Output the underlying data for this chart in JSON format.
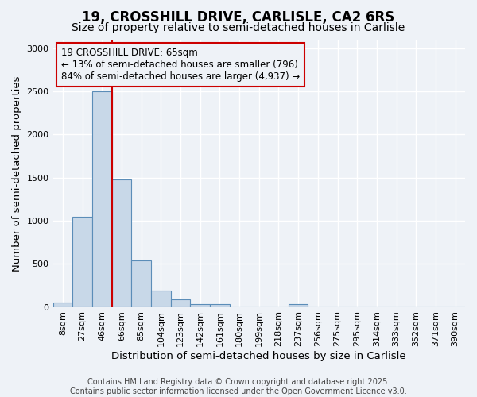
{
  "title": "19, CROSSHILL DRIVE, CARLISLE, CA2 6RS",
  "subtitle": "Size of property relative to semi-detached houses in Carlisle",
  "xlabel": "Distribution of semi-detached houses by size in Carlisle",
  "ylabel": "Number of semi-detached properties",
  "bin_labels": [
    "8sqm",
    "27sqm",
    "46sqm",
    "66sqm",
    "85sqm",
    "104sqm",
    "123sqm",
    "142sqm",
    "161sqm",
    "180sqm",
    "199sqm",
    "218sqm",
    "237sqm",
    "256sqm",
    "275sqm",
    "295sqm",
    "314sqm",
    "333sqm",
    "352sqm",
    "371sqm",
    "390sqm"
  ],
  "bar_values": [
    50,
    1050,
    2500,
    1480,
    540,
    185,
    85,
    30,
    30,
    0,
    0,
    0,
    30,
    0,
    0,
    0,
    0,
    0,
    0,
    0,
    0
  ],
  "bar_color": "#c8d8e8",
  "bar_edgecolor": "#5b8db8",
  "marker_bin_index": 3,
  "marker_color": "#cc0000",
  "ylim": [
    0,
    3100
  ],
  "yticks": [
    0,
    500,
    1000,
    1500,
    2000,
    2500,
    3000
  ],
  "annotation_title": "19 CROSSHILL DRIVE: 65sqm",
  "annotation_line1": "← 13% of semi-detached houses are smaller (796)",
  "annotation_line2": "84% of semi-detached houses are larger (4,937) →",
  "annotation_color": "#cc0000",
  "footer_line1": "Contains HM Land Registry data © Crown copyright and database right 2025.",
  "footer_line2": "Contains public sector information licensed under the Open Government Licence v3.0.",
  "bg_color": "#eef2f7",
  "grid_color": "#ffffff",
  "title_fontsize": 12,
  "subtitle_fontsize": 10,
  "axis_label_fontsize": 9.5,
  "tick_fontsize": 8,
  "annotation_fontsize": 8.5,
  "footer_fontsize": 7
}
